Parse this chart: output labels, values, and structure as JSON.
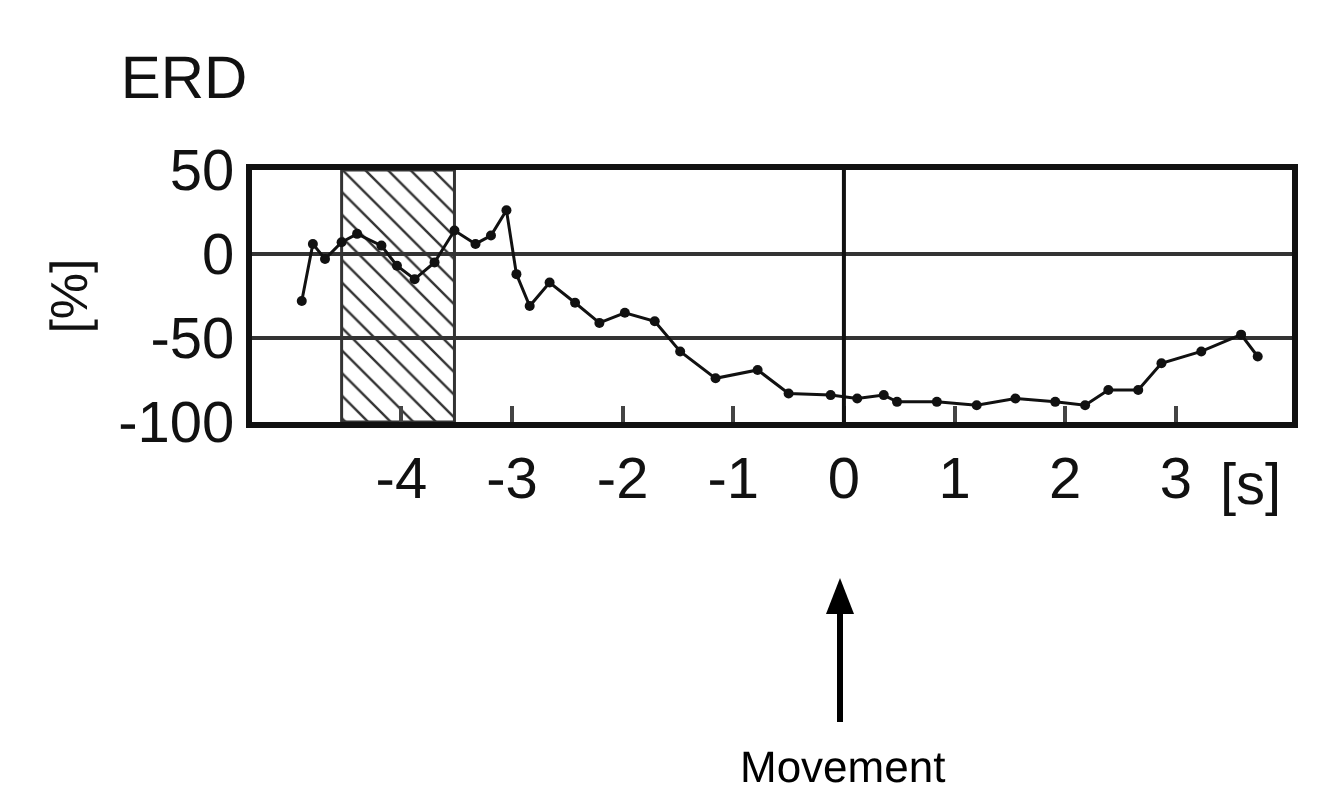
{
  "chart_data": {
    "type": "line",
    "title": "ERD",
    "xlabel": "[s]",
    "ylabel": "[%]",
    "series": [
      {
        "color": "#111111",
        "x": [
          -4.9,
          -4.8,
          -4.69,
          -4.54,
          -4.4,
          -4.18,
          -4.04,
          -3.88,
          -3.7,
          -3.52,
          -3.33,
          -3.19,
          -3.05,
          -2.96,
          -2.84,
          -2.66,
          -2.43,
          -2.21,
          -1.98,
          -1.71,
          -1.48,
          -1.16,
          -0.78,
          -0.5,
          -0.12,
          0.12,
          0.36,
          0.48,
          0.84,
          1.2,
          1.55,
          1.91,
          2.18,
          2.39,
          2.66,
          2.87,
          3.23,
          3.59,
          3.74
        ],
        "values": [
          -28,
          6,
          -3,
          7,
          12,
          5,
          -7,
          -15,
          -5,
          14,
          6,
          11,
          26,
          -12,
          -31,
          -17,
          -29,
          -41,
          -35,
          -40,
          -58,
          -74,
          -69,
          -83,
          -84,
          -86,
          -84,
          -88,
          -88,
          -90,
          -86,
          -88,
          -90,
          -81,
          -81,
          -65,
          -58,
          -48,
          -61
        ]
      }
    ],
    "xlim": [
      -5.35,
      4.05
    ],
    "xticks": [
      -4,
      -3,
      -2,
      -1,
      0,
      1,
      2,
      3
    ],
    "ylim": [
      -100,
      50
    ],
    "yticks": [
      -100,
      -50,
      0,
      50
    ],
    "grid": "y",
    "marker": "circle",
    "line_style": "solid",
    "ref_lines": [
      {
        "axis": "x",
        "value": 0,
        "color": "#111111"
      }
    ],
    "bands": [
      {
        "axis": "x",
        "from": -4.54,
        "to": -3.52,
        "color": "#333333"
      }
    ],
    "annotations": [
      "Movement"
    ]
  }
}
